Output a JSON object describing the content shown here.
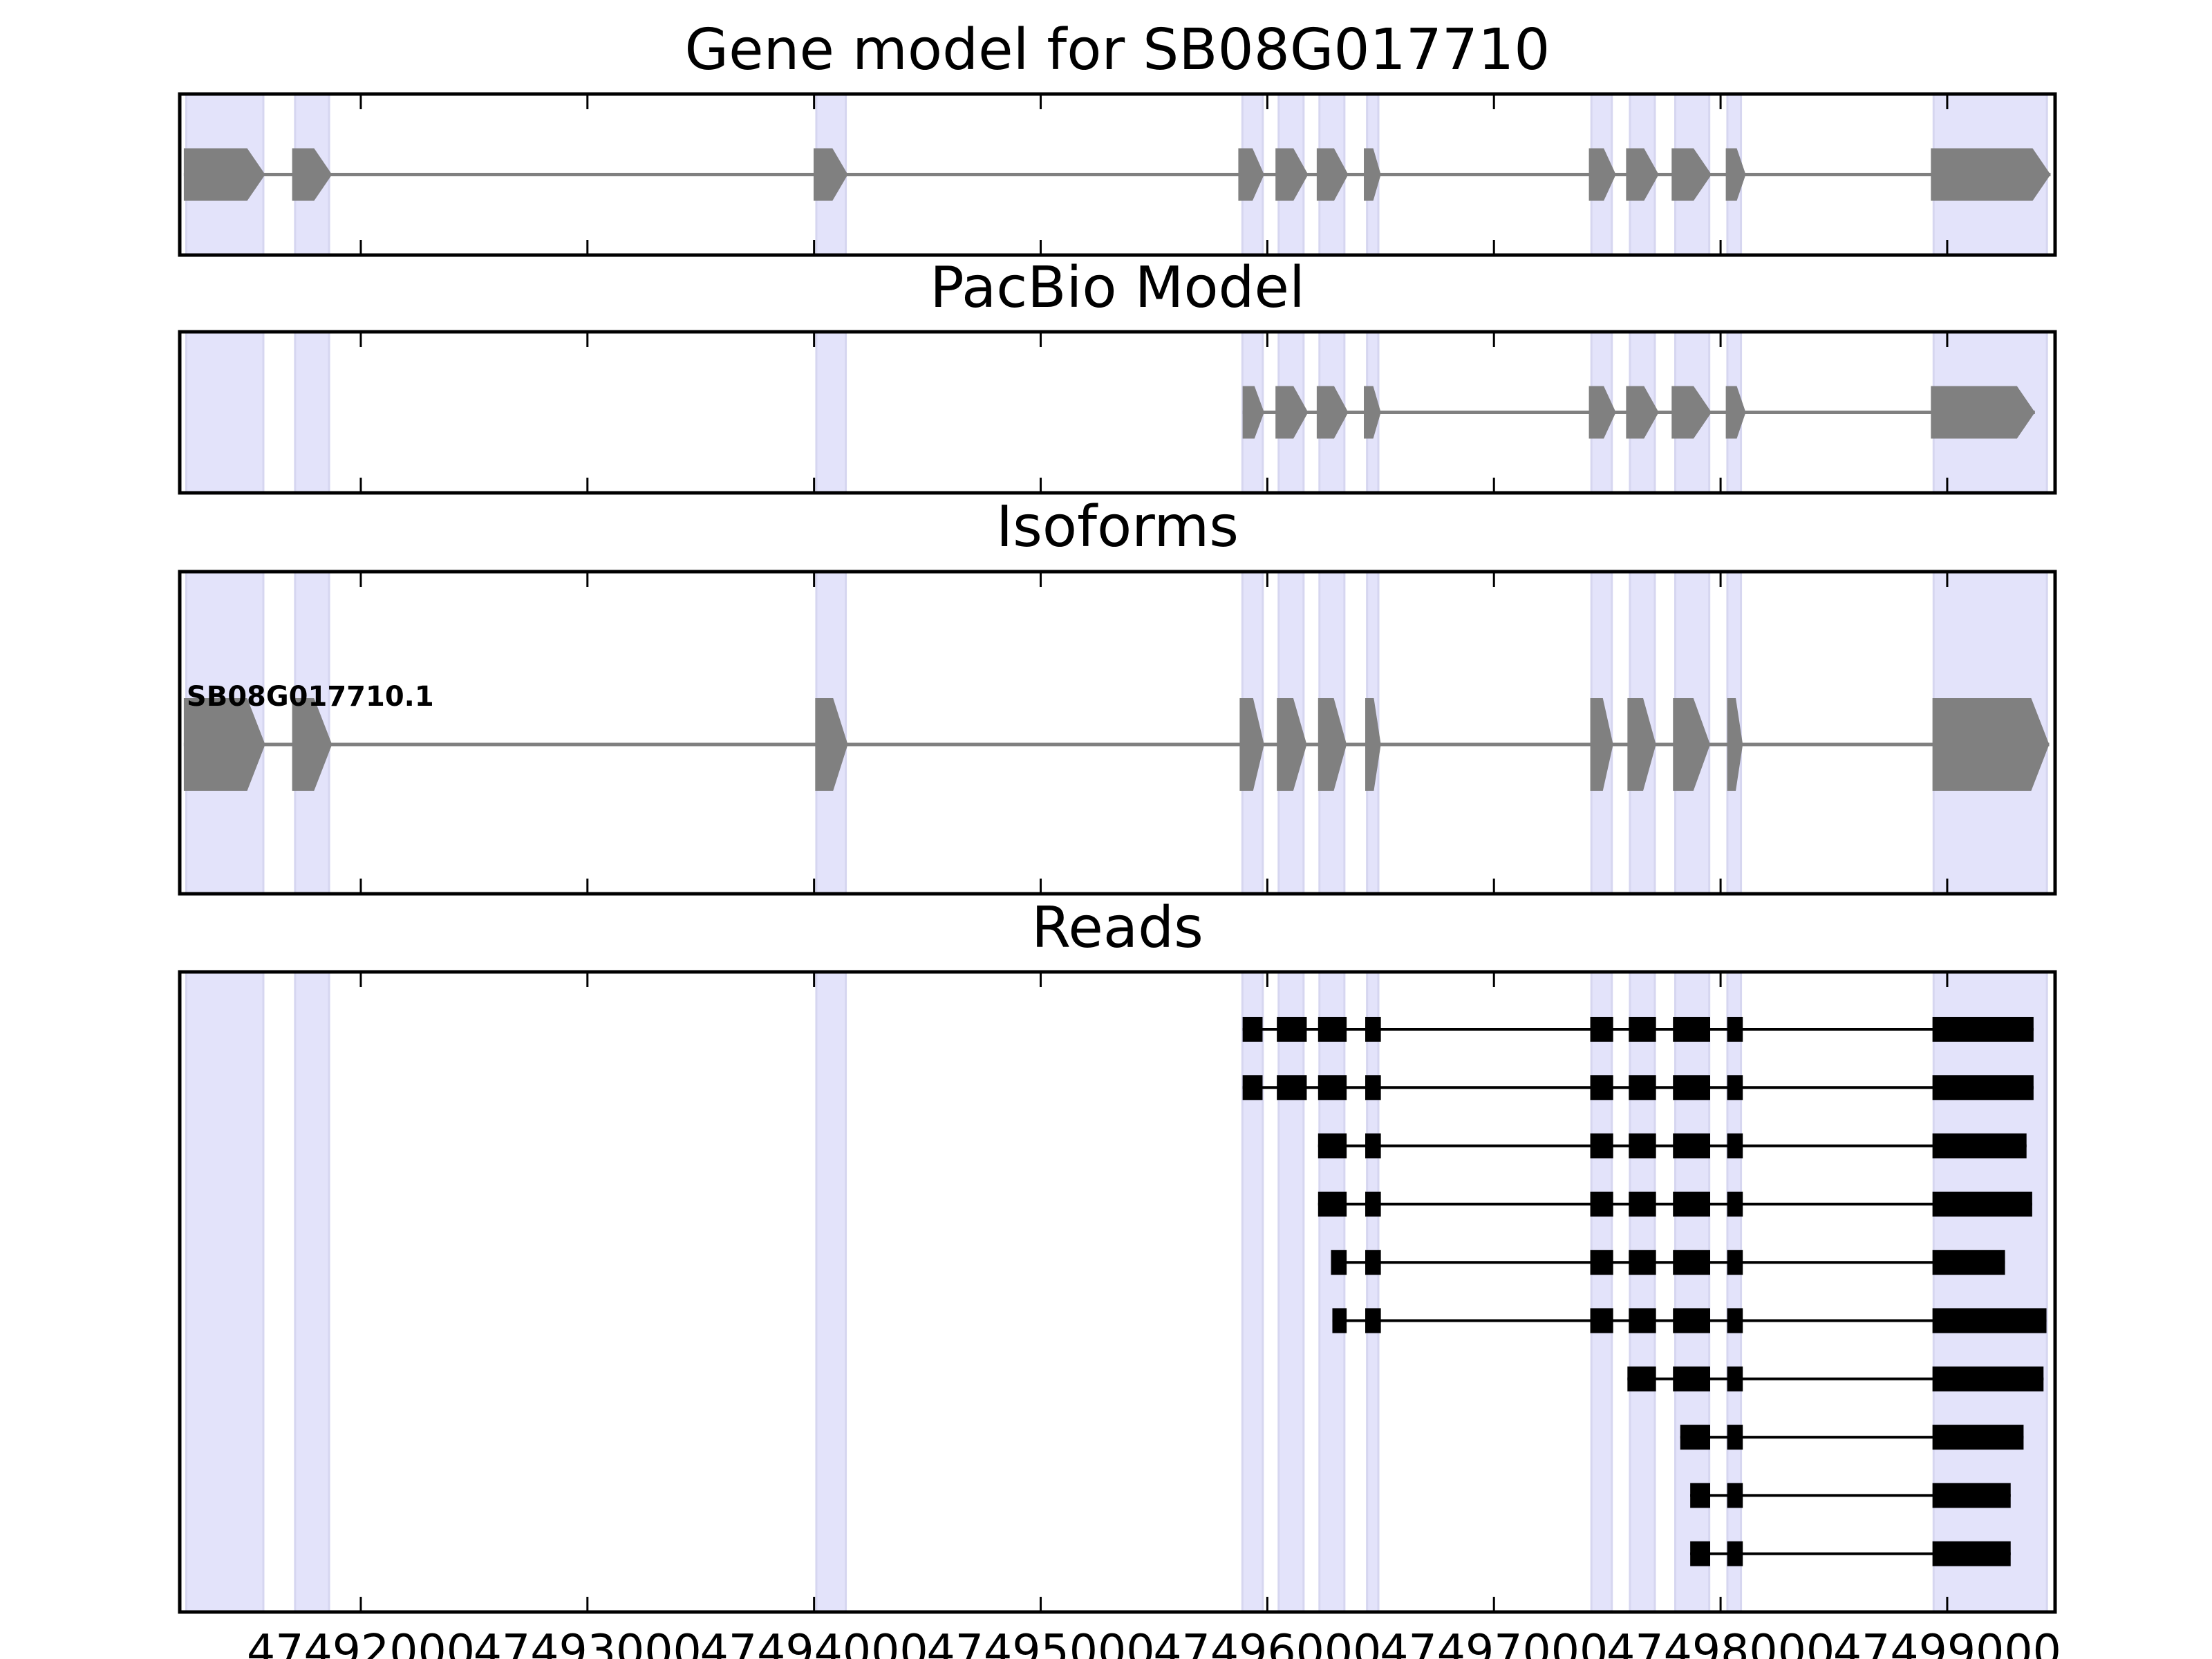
{
  "chart_data": {
    "type": "gene-track",
    "xlim": [
      47491201,
      47499476
    ],
    "x_ticks": [
      47492000,
      47493000,
      47494000,
      47495000,
      47496000,
      47497000,
      47498000,
      47499000
    ],
    "x_tick_labels": [
      "47492000",
      "47493000",
      "47494000",
      "47495000",
      "47496000",
      "47497000",
      "47498000",
      "47499000"
    ],
    "colors": {
      "feature": "#808080",
      "read": "#000000",
      "shade": "#e3e3fa"
    },
    "shaded_regions": [
      [
        47491230,
        47491570
      ],
      [
        47491710,
        47491860
      ],
      [
        47494010,
        47494140
      ],
      [
        47495890,
        47495980
      ],
      [
        47496050,
        47496160
      ],
      [
        47496230,
        47496340
      ],
      [
        47496440,
        47496490
      ],
      [
        47497430,
        47497520
      ],
      [
        47497600,
        47497710
      ],
      [
        47497800,
        47497950
      ],
      [
        47498030,
        47498090
      ],
      [
        47498940,
        47499440
      ]
    ],
    "panels": [
      {
        "title": "Gene model for SB08G017710",
        "kind": "model",
        "exons": [
          [
            47491219,
            47491578
          ],
          [
            47491697,
            47491873
          ],
          [
            47493998,
            47494149
          ],
          [
            47495872,
            47495986
          ],
          [
            47496036,
            47496180
          ],
          [
            47496218,
            47496357
          ],
          [
            47496426,
            47496501
          ],
          [
            47497419,
            47497538
          ],
          [
            47497583,
            47497727
          ],
          [
            47497784,
            47497960
          ],
          [
            47498023,
            47498111
          ],
          [
            47498928,
            47499456
          ]
        ]
      },
      {
        "title": "PacBio Model",
        "kind": "model",
        "exons": [
          [
            47495891,
            47495986
          ],
          [
            47496036,
            47496180
          ],
          [
            47496218,
            47496357
          ],
          [
            47496426,
            47496501
          ],
          [
            47497419,
            47497538
          ],
          [
            47497583,
            47497727
          ],
          [
            47497784,
            47497960
          ],
          [
            47498023,
            47498111
          ],
          [
            47498928,
            47499387
          ]
        ]
      },
      {
        "title": "Isoforms",
        "kind": "isoform",
        "isoforms": [
          {
            "name": "SB08G017710.1",
            "exons": [
              [
                47491219,
                47491578
              ],
              [
                47491697,
                47491873
              ],
              [
                47494005,
                47494149
              ],
              [
                47495878,
                47495986
              ],
              [
                47496042,
                47496174
              ],
              [
                47496224,
                47496350
              ],
              [
                47496432,
                47496501
              ],
              [
                47497425,
                47497526
              ],
              [
                47497589,
                47497715
              ],
              [
                47497790,
                47497954
              ],
              [
                47498029,
                47498098
              ],
              [
                47498935,
                47499450
              ]
            ]
          }
        ]
      },
      {
        "title": "Reads",
        "kind": "reads",
        "reads": [
          [
            [
              47495891,
              47495979
            ],
            [
              47496042,
              47496174
            ],
            [
              47496224,
              47496350
            ],
            [
              47496432,
              47496501
            ],
            [
              47497425,
              47497526
            ],
            [
              47497595,
              47497715
            ],
            [
              47497790,
              47497954
            ],
            [
              47498029,
              47498098
            ],
            [
              47498935,
              47499381
            ]
          ],
          [
            [
              47495891,
              47495979
            ],
            [
              47496042,
              47496174
            ],
            [
              47496224,
              47496350
            ],
            [
              47496432,
              47496501
            ],
            [
              47497425,
              47497526
            ],
            [
              47497595,
              47497715
            ],
            [
              47497790,
              47497954
            ],
            [
              47498029,
              47498098
            ],
            [
              47498935,
              47499381
            ]
          ],
          [
            [
              47496224,
              47496350
            ],
            [
              47496432,
              47496501
            ],
            [
              47497425,
              47497526
            ],
            [
              47497595,
              47497715
            ],
            [
              47497790,
              47497954
            ],
            [
              47498029,
              47498098
            ],
            [
              47498935,
              47499350
            ]
          ],
          [
            [
              47496224,
              47496350
            ],
            [
              47496432,
              47496501
            ],
            [
              47497425,
              47497526
            ],
            [
              47497595,
              47497715
            ],
            [
              47497790,
              47497954
            ],
            [
              47498029,
              47498098
            ],
            [
              47498935,
              47499375
            ]
          ],
          [
            [
              47496281,
              47496350
            ],
            [
              47496432,
              47496501
            ],
            [
              47497425,
              47497526
            ],
            [
              47497595,
              47497715
            ],
            [
              47497790,
              47497954
            ],
            [
              47498029,
              47498098
            ],
            [
              47498935,
              47499255
            ]
          ],
          [
            [
              47496287,
              47496350
            ],
            [
              47496432,
              47496501
            ],
            [
              47497425,
              47497526
            ],
            [
              47497595,
              47497715
            ],
            [
              47497790,
              47497954
            ],
            [
              47498029,
              47498098
            ],
            [
              47498935,
              47499438
            ]
          ],
          [
            [
              47497589,
              47497715
            ],
            [
              47497790,
              47497954
            ],
            [
              47498029,
              47498098
            ],
            [
              47498935,
              47499425
            ]
          ],
          [
            [
              47497822,
              47497954
            ],
            [
              47498029,
              47498098
            ],
            [
              47498935,
              47499337
            ]
          ],
          [
            [
              47497866,
              47497954
            ],
            [
              47498029,
              47498098
            ],
            [
              47498935,
              47499280
            ]
          ],
          [
            [
              47497866,
              47497954
            ],
            [
              47498029,
              47498098
            ],
            [
              47498935,
              47499280
            ]
          ]
        ]
      }
    ]
  }
}
